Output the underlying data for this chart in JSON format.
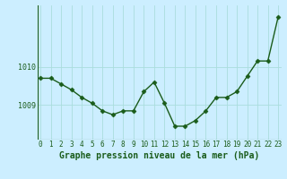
{
  "x": [
    0,
    1,
    2,
    3,
    4,
    5,
    6,
    7,
    8,
    9,
    10,
    11,
    12,
    13,
    14,
    15,
    16,
    17,
    18,
    19,
    20,
    21,
    22,
    23
  ],
  "y": [
    1009.7,
    1009.7,
    1009.55,
    1009.4,
    1009.2,
    1009.05,
    1008.85,
    1008.75,
    1008.85,
    1008.85,
    1009.35,
    1009.6,
    1009.05,
    1008.45,
    1008.45,
    1008.6,
    1008.85,
    1009.2,
    1009.2,
    1009.35,
    1009.75,
    1010.15,
    1010.15,
    1011.3
  ],
  "line_color": "#1a5c1a",
  "marker": "D",
  "marker_size": 2.5,
  "bg_color": "#cceeff",
  "grid_color": "#aadddd",
  "axis_color": "#1a5c1a",
  "xlabel": "Graphe pression niveau de la mer (hPa)",
  "xlabel_fontsize": 7,
  "ytick_labels": [
    "1009",
    "1010"
  ],
  "ytick_positions": [
    1009.0,
    1010.0
  ],
  "xlim": [
    -0.3,
    23.3
  ],
  "ylim": [
    1008.1,
    1011.6
  ],
  "xtick_labels": [
    "0",
    "1",
    "2",
    "3",
    "4",
    "5",
    "6",
    "7",
    "8",
    "9",
    "10",
    "11",
    "12",
    "13",
    "14",
    "15",
    "16",
    "17",
    "18",
    "19",
    "20",
    "21",
    "22",
    "23"
  ],
  "tick_fontsize": 5.5,
  "line_width": 1.0
}
